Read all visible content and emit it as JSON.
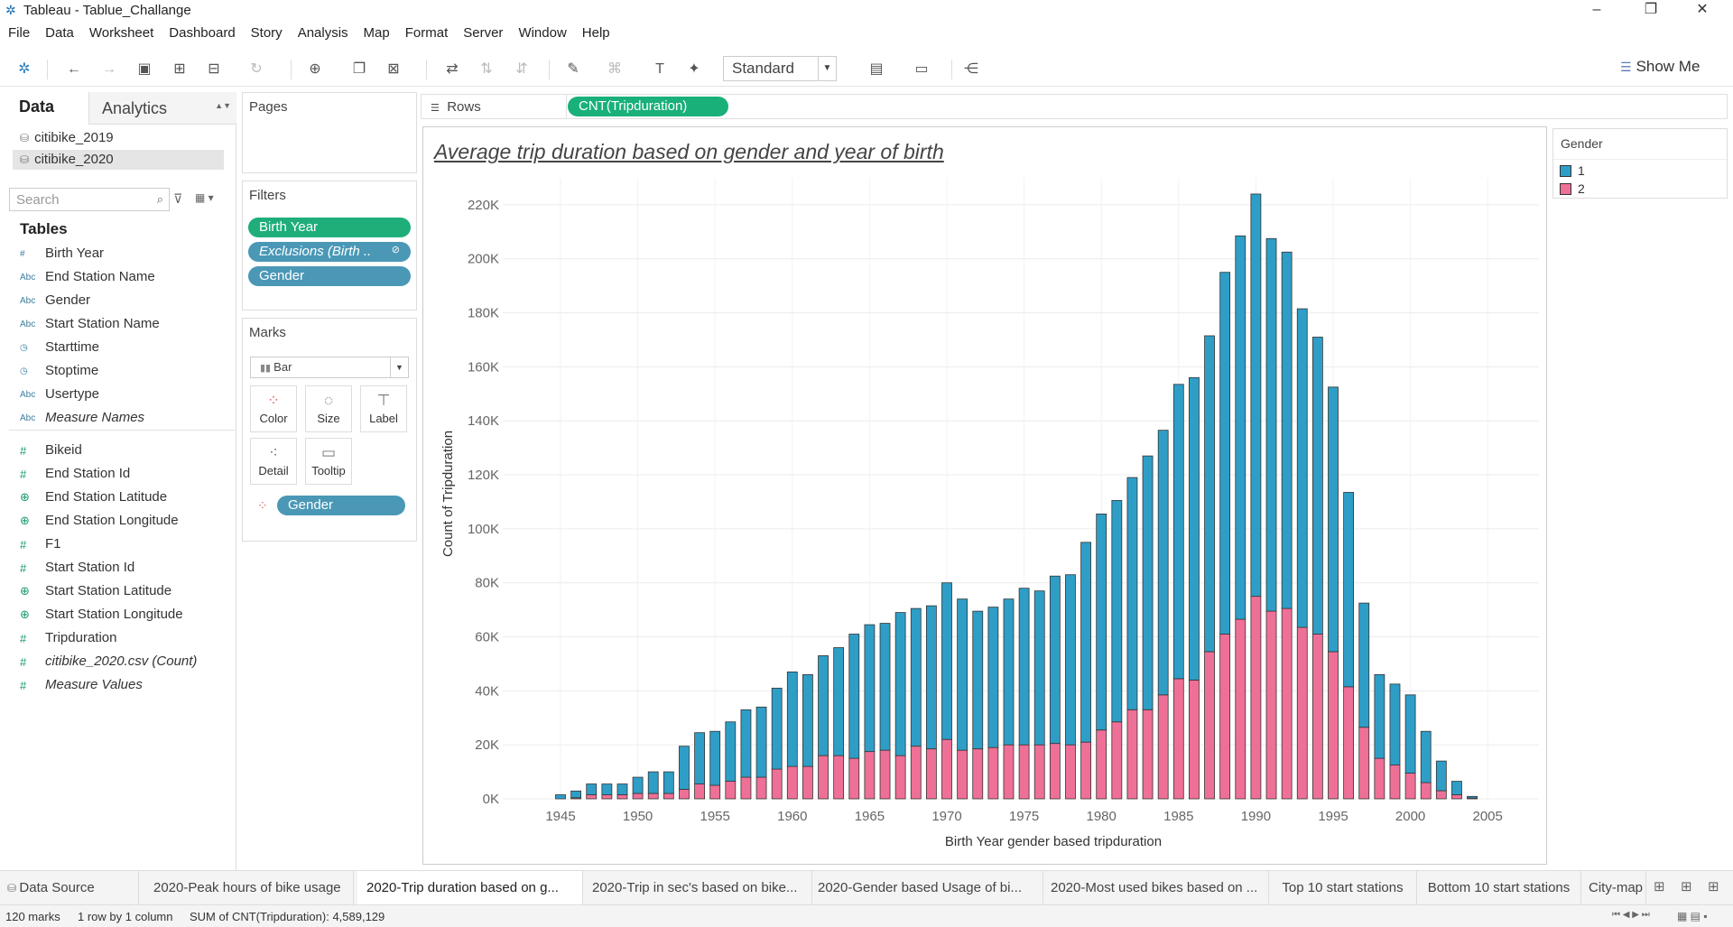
{
  "window": {
    "title": "Tableau - Tablue_Challange",
    "minimize": "–",
    "restore": "❐",
    "close": "✕"
  },
  "menu": [
    "File",
    "Data",
    "Worksheet",
    "Dashboard",
    "Story",
    "Analysis",
    "Map",
    "Format",
    "Server",
    "Window",
    "Help"
  ],
  "toolbar": {
    "fit": "Standard",
    "show_me": "Show Me"
  },
  "data_pane": {
    "tab_data": "Data",
    "tab_analytics": "Analytics",
    "datasources": [
      "citibike_2019",
      "citibike_2020"
    ],
    "search_placeholder": "Search",
    "tables_heading": "Tables",
    "dimensions": [
      {
        "type": "#",
        "name": "Birth Year"
      },
      {
        "type": "Abc",
        "name": "End Station Name"
      },
      {
        "type": "Abc",
        "name": "Gender"
      },
      {
        "type": "Abc",
        "name": "Start Station Name"
      },
      {
        "type": "◷",
        "name": "Starttime"
      },
      {
        "type": "◷",
        "name": "Stoptime"
      },
      {
        "type": "Abc",
        "name": "Usertype"
      },
      {
        "type": "Abc",
        "name": "Measure Names"
      }
    ],
    "measures": [
      {
        "type": "#",
        "name": "Bikeid"
      },
      {
        "type": "#",
        "name": "End Station Id"
      },
      {
        "type": "⊕",
        "name": "End Station Latitude"
      },
      {
        "type": "⊕",
        "name": "End Station Longitude"
      },
      {
        "type": "#",
        "name": "F1"
      },
      {
        "type": "#",
        "name": "Start Station Id"
      },
      {
        "type": "⊕",
        "name": "Start Station Latitude"
      },
      {
        "type": "⊕",
        "name": "Start Station Longitude"
      },
      {
        "type": "#",
        "name": "Tripduration"
      },
      {
        "type": "#",
        "name": "citibike_2020.csv (Count)"
      },
      {
        "type": "#",
        "name": "Measure Values"
      }
    ]
  },
  "pages": {
    "title": "Pages"
  },
  "filters": {
    "title": "Filters",
    "pills": [
      "Birth Year",
      "Exclusions (Birth ..",
      "Gender"
    ]
  },
  "marks": {
    "title": "Marks",
    "type": "Bar",
    "buttons": [
      "Color",
      "Size",
      "Label",
      "Detail",
      "Tooltip"
    ],
    "color_pill": "Gender"
  },
  "shelf": {
    "rows_label": "Rows",
    "rows_pill": "CNT(Tripduration)"
  },
  "legend": {
    "title": "Gender",
    "items": [
      {
        "label": "1",
        "color": "#2e9ec7"
      },
      {
        "label": "2",
        "color": "#ef7097"
      }
    ]
  },
  "chart_data": {
    "type": "bar",
    "stacked": true,
    "title": "Average trip duration based on gender and year of birth",
    "xlabel": "Birth Year  gender based tripduration",
    "ylabel": "Count of Tripduration",
    "ylim": [
      0,
      230000
    ],
    "y_ticks": [
      "0K",
      "20K",
      "40K",
      "60K",
      "80K",
      "100K",
      "120K",
      "140K",
      "160K",
      "180K",
      "200K",
      "220K"
    ],
    "x_ticks": [
      "1945",
      "1950",
      "1955",
      "1960",
      "1965",
      "1970",
      "1975",
      "1980",
      "1985",
      "1990",
      "1995",
      "2000",
      "2005"
    ],
    "categories": [
      1945,
      1946,
      1947,
      1948,
      1949,
      1950,
      1951,
      1952,
      1953,
      1954,
      1955,
      1956,
      1957,
      1958,
      1959,
      1960,
      1961,
      1962,
      1963,
      1964,
      1965,
      1966,
      1967,
      1968,
      1969,
      1970,
      1971,
      1972,
      1973,
      1974,
      1975,
      1976,
      1977,
      1978,
      1979,
      1980,
      1981,
      1982,
      1983,
      1984,
      1985,
      1986,
      1987,
      1988,
      1989,
      1990,
      1991,
      1992,
      1993,
      1994,
      1995,
      1996,
      1997,
      1998,
      1999,
      2000,
      2001,
      2002,
      2003,
      2004
    ],
    "series": [
      {
        "name": "1",
        "color": "#2e9ec7",
        "values": [
          1500,
          2500,
          4000,
          4000,
          4000,
          6000,
          8000,
          8000,
          16000,
          19000,
          20000,
          22000,
          25000,
          26000,
          30000,
          35000,
          34000,
          37000,
          40000,
          46000,
          47000,
          47000,
          53000,
          51000,
          53000,
          58000,
          56000,
          51000,
          52000,
          54000,
          58000,
          57000,
          62000,
          63000,
          74000,
          80000,
          82000,
          86000,
          94000,
          98000,
          109000,
          112000,
          117000,
          134000,
          142000,
          149000,
          138000,
          132000,
          118000,
          110000,
          98000,
          72000,
          46000,
          31000,
          30000,
          29000,
          19000,
          11000,
          5000,
          600
        ]
      },
      {
        "name": "2",
        "color": "#ef7097",
        "values": [
          0,
          400,
          1500,
          1500,
          1500,
          2000,
          2000,
          2000,
          3500,
          5500,
          5000,
          6500,
          8000,
          8000,
          11000,
          12000,
          12000,
          16000,
          16000,
          15000,
          17500,
          18000,
          16000,
          19500,
          18500,
          22000,
          18000,
          18500,
          19000,
          20000,
          20000,
          20000,
          20500,
          20000,
          21000,
          25500,
          28500,
          33000,
          33000,
          38500,
          44500,
          44000,
          54500,
          61000,
          66500,
          75000,
          69500,
          70500,
          63500,
          61000,
          54500,
          41500,
          26500,
          15000,
          12500,
          9500,
          6000,
          3000,
          1500,
          300
        ]
      }
    ]
  },
  "sheet_tabs": [
    "Data Source",
    "2020-Peak hours of bike usage",
    "2020-Trip duration based on g...",
    "2020-Trip in sec's based on bike...",
    "2020-Gender based Usage of bi...",
    "2020-Most used bikes based on ...",
    "Top 10 start stations",
    "Bottom 10 start stations",
    "City-map"
  ],
  "status": {
    "marks": "120 marks",
    "dims": "1 row by 1 column",
    "sum": "SUM of CNT(Tripduration): 4,589,129"
  }
}
